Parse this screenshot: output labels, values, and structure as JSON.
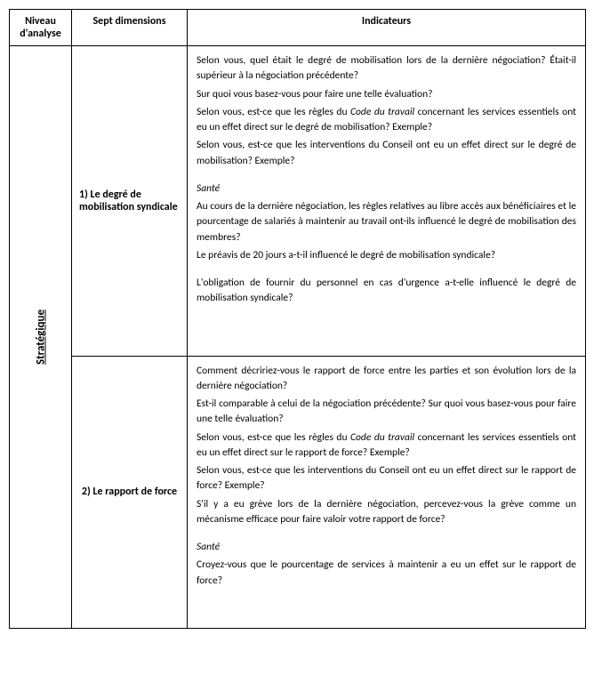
{
  "headers": {
    "niveau": "Niveau d'analyse",
    "dimensions": "Sept dimensions",
    "indicateurs": "Indicateurs"
  },
  "niveau_label": "Stratégique",
  "row1": {
    "dimension": "1) Le degré de mobilisation syndicale",
    "p1": "Selon vous, quel était le degré de mobilisation lors de la dernière négociation? Était-il supérieur à la négociation précédente?",
    "p2": "Sur quoi vous basez-vous pour faire une telle évaluation?",
    "p3a": "Selon vous, est-ce que les règles du ",
    "p3b": "Code du travail",
    "p3c": " concernant les services essentiels ont eu un effet direct sur le degré de mobilisation? Exemple?",
    "p4": "Selon vous, est-ce que les interventions du Conseil ont eu un effet direct sur le degré de mobilisation? Exemple?",
    "sante_label": "Santé",
    "p5": "Au cours de la dernière négociation, les règles relatives au libre accès aux bénéficiaires et le pourcentage de salariés à maintenir au travail ont-ils influencé le degré de mobilisation des membres?",
    "p6": "Le préavis de 20 jours a-t-il influencé le degré de mobilisation syndicale?",
    "p7": "L'obligation de fournir du personnel en cas d'urgence a-t-elle influencé le degré de mobilisation syndicale?"
  },
  "row2": {
    "dimension": "2) Le rapport de force",
    "p1": "Comment décririez-vous le rapport de force entre les parties et son évolution lors de la dernière négociation?",
    "p2": "Est-il comparable à celui de la négociation précédente? Sur quoi vous basez-vous pour faire une telle évaluation?",
    "p3a": "Selon vous, est-ce que les règles du ",
    "p3b": "Code du travail",
    "p3c": " concernant les services essentiels ont eu un effet direct sur le rapport de force? Exemple?",
    "p4": "Selon vous, est-ce que les interventions du Conseil ont eu un effet direct sur le rapport de force? Exemple?",
    "p5": "S'il y a eu grève lors de la dernière négociation, percevez-vous la grève comme un mécanisme efficace pour faire valoir votre rapport de force?",
    "sante_label": "Santé",
    "p6": "Croyez-vous que le pourcentage de services à maintenir a eu un effet sur le rapport de force?"
  }
}
